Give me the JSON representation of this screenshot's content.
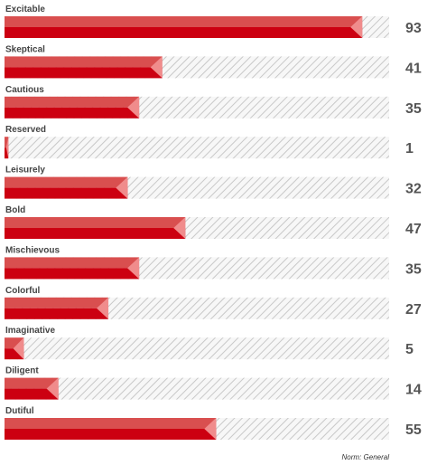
{
  "chart_data": {
    "type": "bar",
    "orientation": "horizontal",
    "categories": [
      "Excitable",
      "Skeptical",
      "Cautious",
      "Reserved",
      "Leisurely",
      "Bold",
      "Mischievous",
      "Colorful",
      "Imaginative",
      "Diligent",
      "Dutiful"
    ],
    "values": [
      93,
      41,
      35,
      1,
      32,
      47,
      35,
      27,
      5,
      14,
      55
    ],
    "xlim": [
      0,
      100
    ],
    "colors": {
      "bar_top": "#d94f4f",
      "bar_bottom": "#cc0011",
      "bar_tip": "#f08c8c",
      "track_stripe": "#c8c8c8",
      "track_bg": "#f7f7f7",
      "value_text": "#555555"
    },
    "footnote": "Norm: General"
  }
}
